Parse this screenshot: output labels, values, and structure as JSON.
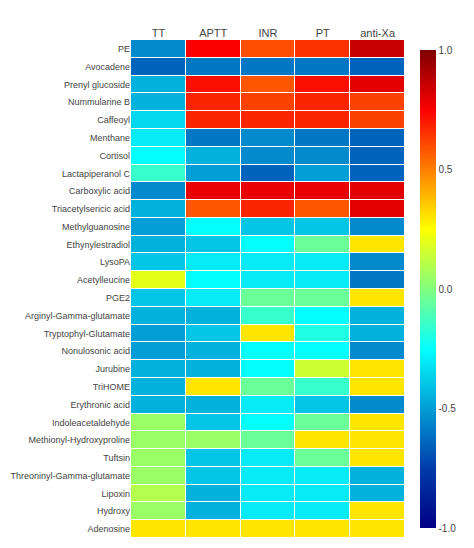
{
  "chart_data": {
    "type": "heatmap",
    "x": [
      "TT",
      "APTT",
      "INR",
      "PT",
      "anti-Xa"
    ],
    "y": [
      "PE",
      "Avocadene",
      "Prenyl glucoside",
      "Nummularine B",
      "Caffeoyl",
      "Menthane",
      "Cortisol",
      "Lactapiperanol C",
      "Carboxylic acid",
      "Triacetylsericic acid",
      "Methylguanosine",
      "Ethynylestradiol",
      "LysoPA",
      "Acetylleucine",
      "PGE2",
      "Arginyl-Gamma-glutamate",
      "Tryptophyl-Glutamate",
      "Nonulosonic acid",
      "Jurubine",
      "TriHOME",
      "Erythronic acid",
      "Indoleacetaldehyde",
      "Methionyl-Hydroxyproline",
      "Tuftsin",
      "Threoninyl-Gamma-glutamate",
      "Lipoxin",
      "Hydroxy",
      "Adenosine"
    ],
    "values": [
      [
        -0.55,
        0.75,
        0.6,
        0.65,
        0.85
      ],
      [
        -0.65,
        -0.6,
        -0.6,
        -0.6,
        -0.65
      ],
      [
        -0.45,
        0.72,
        0.58,
        0.72,
        0.8
      ],
      [
        -0.45,
        0.68,
        0.62,
        0.68,
        0.62
      ],
      [
        -0.35,
        0.68,
        0.68,
        0.68,
        0.62
      ],
      [
        -0.3,
        -0.6,
        -0.55,
        -0.6,
        -0.65
      ],
      [
        -0.25,
        -0.45,
        -0.55,
        -0.55,
        -0.65
      ],
      [
        -0.15,
        -0.5,
        -0.65,
        -0.5,
        -0.65
      ],
      [
        -0.55,
        0.78,
        0.78,
        0.78,
        0.8
      ],
      [
        -0.45,
        0.58,
        0.68,
        0.58,
        0.8
      ],
      [
        -0.5,
        -0.25,
        -0.4,
        -0.4,
        -0.55
      ],
      [
        -0.45,
        -0.4,
        -0.25,
        -0.05,
        0.3
      ],
      [
        -0.4,
        -0.3,
        -0.3,
        -0.3,
        -0.55
      ],
      [
        0.2,
        -0.25,
        -0.3,
        -0.3,
        -0.6
      ],
      [
        -0.4,
        -0.3,
        -0.05,
        -0.05,
        0.3
      ],
      [
        -0.45,
        -0.45,
        -0.15,
        -0.25,
        -0.45
      ],
      [
        -0.5,
        -0.4,
        0.3,
        -0.2,
        -0.45
      ],
      [
        -0.5,
        -0.45,
        -0.25,
        -0.25,
        -0.55
      ],
      [
        -0.45,
        -0.45,
        -0.25,
        0.15,
        0.3
      ],
      [
        -0.45,
        0.3,
        -0.05,
        -0.15,
        0.3
      ],
      [
        -0.45,
        -0.45,
        -0.3,
        -0.4,
        -0.55
      ],
      [
        0.05,
        -0.4,
        -0.25,
        -0.05,
        0.3
      ],
      [
        0.05,
        0.05,
        -0.05,
        0.3,
        0.3
      ],
      [
        0.05,
        -0.4,
        -0.3,
        -0.05,
        0.3
      ],
      [
        0.05,
        -0.4,
        -0.3,
        -0.3,
        -0.45
      ],
      [
        0.1,
        -0.45,
        -0.3,
        -0.3,
        -0.45
      ],
      [
        0.05,
        -0.45,
        -0.3,
        -0.3,
        0.3
      ],
      [
        0.3,
        0.3,
        0.3,
        0.3,
        0.3
      ]
    ],
    "zlim": [
      -1.0,
      1.0
    ],
    "zticks": [
      {
        "value": -1.0,
        "label": "-1.0"
      },
      -0.5,
      {
        "value": 0.0,
        "label": "0.0"
      },
      0.5,
      {
        "value": 1.0,
        "label": "1.0"
      }
    ],
    "grid": false
  }
}
